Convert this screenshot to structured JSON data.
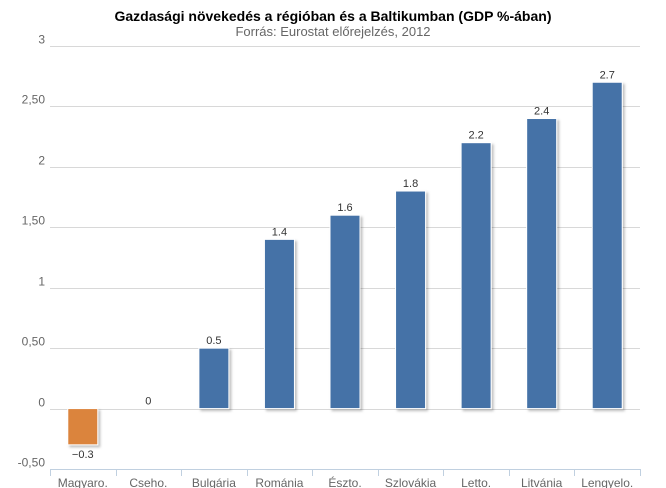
{
  "chart_data": {
    "type": "bar",
    "title": "Gazdasági növekedés a régióban és a Baltikumban (GDP %-ában)",
    "subtitle": "Forrás: Eurostat előrejelzés, 2012",
    "categories": [
      "Magyaro.",
      "Cseho.",
      "Bulgária",
      "Románia",
      "Észto.",
      "Szlovákia",
      "Letto.",
      "Litvánia",
      "Lengyelo."
    ],
    "values": [
      -0.3,
      0,
      0.5,
      1.4,
      1.6,
      1.8,
      2.2,
      2.4,
      2.7
    ],
    "data_labels": [
      "−0.3",
      "0",
      "0.5",
      "1.4",
      "1.6",
      "1.8",
      "2.2",
      "2.4",
      "2.7"
    ],
    "y_ticks": [
      {
        "value": -0.5,
        "label": "-0,50"
      },
      {
        "value": 0,
        "label": "0"
      },
      {
        "value": 0.5,
        "label": "0,50"
      },
      {
        "value": 1,
        "label": "1"
      },
      {
        "value": 1.5,
        "label": "1,50"
      },
      {
        "value": 2,
        "label": "2"
      },
      {
        "value": 2.5,
        "label": "2,50"
      },
      {
        "value": 3,
        "label": "3"
      }
    ],
    "ylim": [
      -0.5,
      3
    ],
    "xlabel": "",
    "ylabel": "",
    "grid": true,
    "colors": {
      "positive": "#4572a7",
      "negative": "#db843d",
      "grid": "#d8d8d8",
      "axis_text": "#666666"
    }
  }
}
